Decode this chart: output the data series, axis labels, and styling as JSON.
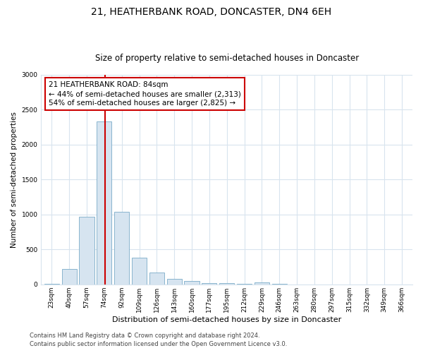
{
  "title1": "21, HEATHERBANK ROAD, DONCASTER, DN4 6EH",
  "title2": "Size of property relative to semi-detached houses in Doncaster",
  "xlabel": "Distribution of semi-detached houses by size in Doncaster",
  "ylabel": "Number of semi-detached properties",
  "categories": [
    "23sqm",
    "40sqm",
    "57sqm",
    "74sqm",
    "92sqm",
    "109sqm",
    "126sqm",
    "143sqm",
    "160sqm",
    "177sqm",
    "195sqm",
    "212sqm",
    "229sqm",
    "246sqm",
    "263sqm",
    "280sqm",
    "297sqm",
    "315sqm",
    "332sqm",
    "349sqm",
    "366sqm"
  ],
  "values": [
    10,
    220,
    970,
    2330,
    1040,
    380,
    165,
    80,
    50,
    20,
    15,
    10,
    30,
    5,
    2,
    1,
    1,
    1,
    1,
    1,
    1
  ],
  "bar_color": "#d6e4f0",
  "bar_edge_color": "#7aabc8",
  "marker_color": "#cc0000",
  "annotation_title": "21 HEATHERBANK ROAD: 84sqm",
  "annotation_line1": "← 44% of semi-detached houses are smaller (2,313)",
  "annotation_line2": "54% of semi-detached houses are larger (2,825) →",
  "annotation_box_color": "#cc0000",
  "ylim": [
    0,
    3000
  ],
  "footer1": "Contains HM Land Registry data © Crown copyright and database right 2024.",
  "footer2": "Contains public sector information licensed under the Open Government Licence v3.0.",
  "background_color": "#ffffff",
  "plot_background": "#ffffff",
  "grid_color": "#d8e4ee",
  "title1_fontsize": 10,
  "title2_fontsize": 8.5,
  "ylabel_fontsize": 7.5,
  "xlabel_fontsize": 8,
  "tick_fontsize": 6.5,
  "footer_fontsize": 6,
  "ann_fontsize": 7.5
}
